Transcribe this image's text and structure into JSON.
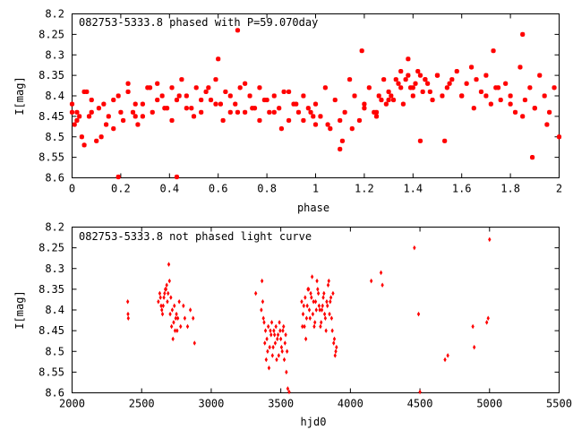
{
  "colors": {
    "points": "#ff0000",
    "frame": "#000000",
    "background": "#ffffff"
  },
  "chart_data": [
    {
      "type": "scatter",
      "title": "082753-5333.8 phased with P=59.070day",
      "xlabel": "phase",
      "ylabel": "I[mag]",
      "xlim": [
        0,
        2
      ],
      "ylim": [
        8.6,
        8.2
      ],
      "y_inverted": true,
      "xticks": [
        "0",
        "0.2",
        "0.4",
        "0.6",
        "0.8",
        "1",
        "1.2",
        "1.4",
        "1.6",
        "1.8",
        "2"
      ],
      "yticks": [
        "8.2",
        "8.25",
        "8.3",
        "8.35",
        "8.4",
        "8.45",
        "8.5",
        "8.55",
        "8.6"
      ],
      "marker": "star",
      "series": [
        {
          "x": [
            0.0,
            0.01,
            0.02,
            0.03,
            0.04,
            0.05,
            0.06,
            0.07,
            0.08,
            0.1,
            0.12,
            0.13,
            0.15,
            0.17,
            0.19,
            0.21,
            0.23,
            0.25,
            0.26,
            0.27,
            0.29,
            0.31,
            0.33,
            0.35,
            0.37,
            0.39,
            0.41,
            0.43,
            0.45,
            0.47,
            0.49,
            0.51,
            0.53,
            0.55,
            0.57,
            0.59,
            0.61,
            0.63,
            0.65,
            0.67,
            0.69,
            0.71,
            0.73,
            0.75,
            0.77,
            0.79,
            0.81,
            0.83,
            0.85,
            0.87,
            0.89,
            0.91,
            0.93,
            0.95,
            0.97,
            0.99,
            0.0,
            0.02,
            0.05,
            0.08,
            0.11,
            0.14,
            0.17,
            0.2,
            0.23,
            0.26,
            0.29,
            0.32,
            0.35,
            0.38,
            0.41,
            0.44,
            0.47,
            0.5,
            0.53,
            0.56,
            0.59,
            0.62,
            0.65,
            0.68,
            0.71,
            0.74,
            0.77,
            0.8,
            0.83,
            0.86,
            0.89,
            0.92,
            0.95,
            0.98,
            0.19,
            0.43,
            0.68,
            0.6,
            1.0,
            1.02,
            1.04,
            1.06,
            1.08,
            1.1,
            1.12,
            1.14,
            1.16,
            1.18,
            1.2,
            1.22,
            1.24,
            1.26,
            1.28,
            1.3,
            1.32,
            1.34,
            1.36,
            1.38,
            1.4,
            1.42,
            1.44,
            1.46,
            1.48,
            1.5,
            1.52,
            1.54,
            1.56,
            1.58,
            1.6,
            1.62,
            1.64,
            1.66,
            1.68,
            1.7,
            1.72,
            1.74,
            1.76,
            1.78,
            1.8,
            1.82,
            1.84,
            1.86,
            1.88,
            1.9,
            1.92,
            1.94,
            1.96,
            1.98,
            1.35,
            1.37,
            1.39,
            1.41,
            1.43,
            1.45,
            1.47,
            1.33,
            1.31,
            1.29,
            1.27,
            1.25,
            1.05,
            1.1,
            1.15,
            1.2,
            1.25,
            1.3,
            1.35,
            1.4,
            1.45,
            1.5,
            1.55,
            1.6,
            1.65,
            1.7,
            1.75,
            1.8,
            1.85,
            1.9,
            1.95,
            2.0,
            1.0,
            1.19,
            1.43,
            1.73,
            1.85,
            1.89,
            1.53,
            1.38,
            1.11
          ],
          "y": [
            8.44,
            8.47,
            8.46,
            8.45,
            8.5,
            8.52,
            8.39,
            8.45,
            8.44,
            8.51,
            8.5,
            8.42,
            8.45,
            8.48,
            8.4,
            8.46,
            8.37,
            8.44,
            8.45,
            8.47,
            8.42,
            8.38,
            8.44,
            8.37,
            8.4,
            8.43,
            8.38,
            8.41,
            8.36,
            8.4,
            8.43,
            8.38,
            8.44,
            8.39,
            8.41,
            8.36,
            8.42,
            8.39,
            8.44,
            8.42,
            8.38,
            8.44,
            8.4,
            8.43,
            8.38,
            8.41,
            8.44,
            8.4,
            8.43,
            8.39,
            8.46,
            8.42,
            8.44,
            8.4,
            8.43,
            8.45,
            8.42,
            8.44,
            8.39,
            8.41,
            8.43,
            8.47,
            8.41,
            8.44,
            8.39,
            8.42,
            8.45,
            8.38,
            8.41,
            8.43,
            8.46,
            8.4,
            8.43,
            8.45,
            8.41,
            8.38,
            8.42,
            8.46,
            8.4,
            8.44,
            8.37,
            8.43,
            8.46,
            8.41,
            8.44,
            8.48,
            8.39,
            8.42,
            8.46,
            8.44,
            8.6,
            8.6,
            8.24,
            8.31,
            8.42,
            8.45,
            8.38,
            8.48,
            8.41,
            8.53,
            8.44,
            8.36,
            8.4,
            8.46,
            8.42,
            8.38,
            8.44,
            8.4,
            8.36,
            8.39,
            8.41,
            8.37,
            8.42,
            8.35,
            8.38,
            8.34,
            8.39,
            8.37,
            8.41,
            8.35,
            8.4,
            8.38,
            8.36,
            8.34,
            8.4,
            8.37,
            8.33,
            8.36,
            8.39,
            8.35,
            8.42,
            8.38,
            8.41,
            8.37,
            8.4,
            8.44,
            8.33,
            8.41,
            8.38,
            8.43,
            8.35,
            8.4,
            8.44,
            8.38,
            8.34,
            8.36,
            8.38,
            8.37,
            8.35,
            8.36,
            8.39,
            8.36,
            8.4,
            8.42,
            8.41,
            8.44,
            8.47,
            8.46,
            8.48,
            8.43,
            8.45,
            8.41,
            8.38,
            8.4,
            8.36,
            8.35,
            8.37,
            8.4,
            8.43,
            8.4,
            8.38,
            8.42,
            8.45,
            8.43,
            8.47,
            8.5,
            8.47,
            8.29,
            8.51,
            8.29,
            8.25,
            8.55,
            8.51,
            8.31,
            8.51
          ]
        }
      ]
    },
    {
      "type": "scatter",
      "title": "082753-5333.8 not phased light curve",
      "xlabel": "hjd0",
      "ylabel": "I[mag]",
      "xlim": [
        2000,
        5500
      ],
      "ylim": [
        8.6,
        8.2
      ],
      "y_inverted": true,
      "xticks": [
        "2000",
        "2500",
        "3000",
        "3500",
        "4000",
        "4500",
        "5000",
        "5500"
      ],
      "yticks": [
        "8.2",
        "8.25",
        "8.3",
        "8.35",
        "8.4",
        "8.45",
        "8.5",
        "8.55",
        "8.6"
      ],
      "marker": "diamond",
      "series": [
        {
          "x": [
            2400,
            2402,
            2404,
            2620,
            2630,
            2640,
            2650,
            2660,
            2670,
            2680,
            2690,
            2700,
            2710,
            2720,
            2730,
            2740,
            2750,
            2760,
            2770,
            2780,
            2800,
            2810,
            2830,
            2850,
            2870,
            2880,
            2635,
            2645,
            2655,
            2665,
            2675,
            2685,
            2695,
            2705,
            2715,
            2725,
            2735,
            2745,
            2755,
            3320,
            3360,
            3370,
            3380,
            3390,
            3400,
            3410,
            3420,
            3430,
            3440,
            3450,
            3460,
            3470,
            3480,
            3490,
            3500,
            3510,
            3520,
            3530,
            3540,
            3550,
            3365,
            3375,
            3385,
            3395,
            3405,
            3415,
            3425,
            3435,
            3445,
            3455,
            3465,
            3475,
            3485,
            3495,
            3505,
            3515,
            3525,
            3535,
            3545,
            3560,
            3650,
            3660,
            3670,
            3680,
            3690,
            3700,
            3710,
            3720,
            3730,
            3740,
            3750,
            3760,
            3770,
            3780,
            3790,
            3800,
            3810,
            3820,
            3830,
            3840,
            3850,
            3860,
            3870,
            3880,
            3890,
            3900,
            3655,
            3665,
            3675,
            3685,
            3695,
            3705,
            3715,
            3725,
            3735,
            3745,
            3755,
            3765,
            3775,
            3785,
            3795,
            3805,
            3815,
            3825,
            3835,
            3845,
            3855,
            3865,
            3875,
            3885,
            3895,
            4150,
            4220,
            4230,
            4460,
            4490,
            4500,
            4680,
            4700,
            4880,
            4890,
            4980,
            4990,
            5000
          ],
          "y": [
            8.38,
            8.41,
            8.42,
            8.38,
            8.36,
            8.39,
            8.41,
            8.37,
            8.35,
            8.34,
            8.36,
            8.33,
            8.37,
            8.4,
            8.43,
            8.45,
            8.41,
            8.42,
            8.38,
            8.44,
            8.39,
            8.42,
            8.44,
            8.4,
            8.42,
            8.48,
            8.37,
            8.4,
            8.39,
            8.36,
            8.35,
            8.38,
            8.29,
            8.41,
            8.44,
            8.47,
            8.39,
            8.42,
            8.45,
            8.36,
            8.4,
            8.38,
            8.43,
            8.45,
            8.47,
            8.44,
            8.49,
            8.46,
            8.51,
            8.45,
            8.48,
            8.52,
            8.46,
            8.43,
            8.47,
            8.5,
            8.44,
            8.48,
            8.55,
            8.59,
            8.33,
            8.42,
            8.48,
            8.52,
            8.5,
            8.54,
            8.45,
            8.43,
            8.49,
            8.46,
            8.44,
            8.47,
            8.51,
            8.45,
            8.49,
            8.45,
            8.52,
            8.46,
            8.5,
            8.6,
            8.38,
            8.41,
            8.44,
            8.47,
            8.39,
            8.35,
            8.42,
            8.37,
            8.41,
            8.44,
            8.38,
            8.33,
            8.36,
            8.4,
            8.43,
            8.39,
            8.36,
            8.42,
            8.38,
            8.34,
            8.41,
            8.37,
            8.45,
            8.48,
            8.51,
            8.49,
            8.44,
            8.39,
            8.37,
            8.42,
            8.35,
            8.4,
            8.36,
            8.32,
            8.38,
            8.43,
            8.4,
            8.35,
            8.39,
            8.44,
            8.4,
            8.37,
            8.41,
            8.45,
            8.39,
            8.33,
            8.38,
            8.42,
            8.36,
            8.47,
            8.5,
            8.33,
            8.31,
            8.34,
            8.25,
            8.41,
            8.6,
            8.52,
            8.51,
            8.44,
            8.49,
            8.43,
            8.42,
            8.23
          ]
        }
      ]
    }
  ]
}
